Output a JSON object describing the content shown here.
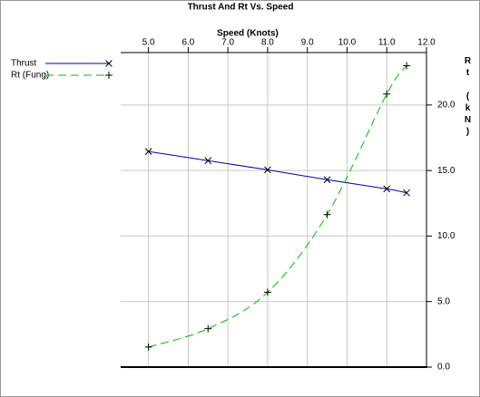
{
  "chart_data": {
    "type": "line",
    "title": "Thrust And Rt Vs. Speed",
    "x_label": "Speed (Knots)",
    "y_label": "Rt (kN)",
    "x": [
      5.0,
      6.5,
      8.0,
      9.5,
      11.0,
      11.5
    ],
    "series": [
      {
        "name": "Thrust",
        "color": "#0000aa",
        "marker": "x",
        "dashed": false,
        "values": [
          16.45,
          15.75,
          15.05,
          14.3,
          13.6,
          13.3
        ]
      },
      {
        "name": "Rt (Fung)",
        "color": "#00bb00",
        "marker": "+",
        "dashed": true,
        "values": [
          1.53,
          2.93,
          5.71,
          11.64,
          20.84,
          23.0
        ]
      }
    ],
    "xlim": [
      4.3,
      12.0
    ],
    "xticks": [
      {
        "value": 5,
        "label": "5.0"
      },
      {
        "value": 6,
        "label": "6.0"
      },
      {
        "value": 7,
        "label": "7.0"
      },
      {
        "value": 8,
        "label": "8.0"
      },
      {
        "value": 9,
        "label": "9.0"
      },
      {
        "value": 10,
        "label": "10.0"
      },
      {
        "value": 11,
        "label": "11.0"
      },
      {
        "value": 12,
        "label": "12.0"
      }
    ],
    "ylim": [
      0,
      24
    ],
    "yticks": [
      {
        "value": 0,
        "label": "0.0"
      },
      {
        "value": 5,
        "label": "5.0"
      },
      {
        "value": 10,
        "label": "10.0"
      },
      {
        "value": 15,
        "label": "15.0"
      },
      {
        "value": 20,
        "label": "20.0"
      }
    ],
    "grid": true,
    "legend": "top-left"
  }
}
